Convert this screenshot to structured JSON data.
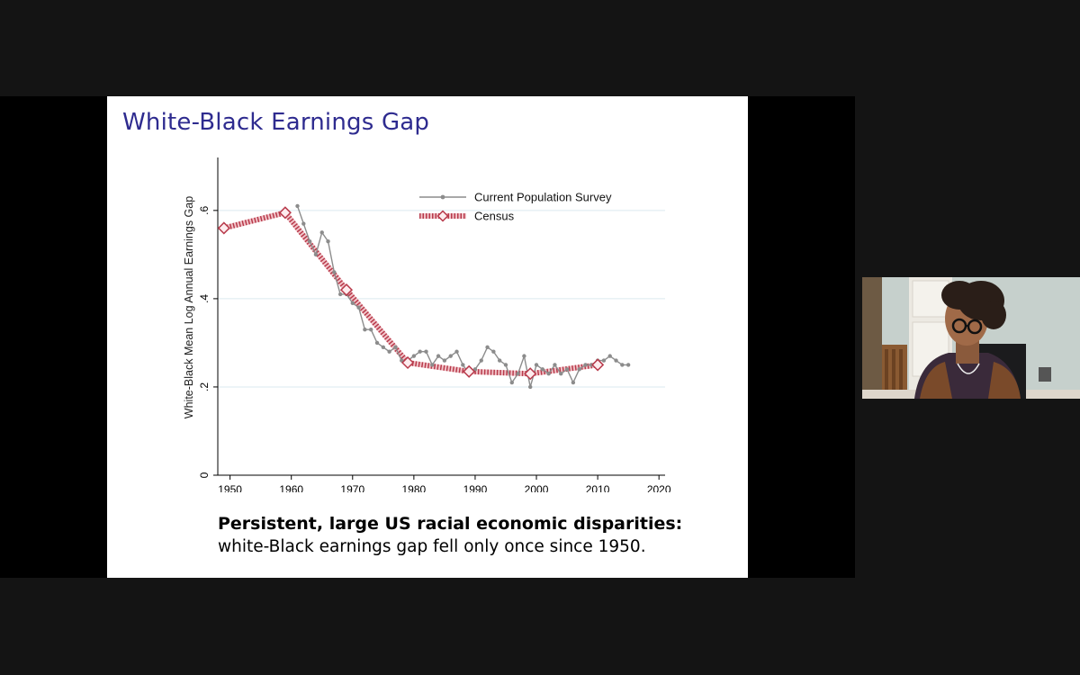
{
  "slide": {
    "title": "White-Black Earnings Gap",
    "caption_bold": "Persistent, large US racial economic disparities:",
    "caption_text": "white-Black earnings gap fell only once since 1950."
  },
  "chart_data": {
    "type": "line",
    "title": "",
    "xlabel": "",
    "ylabel": "White-Black Mean Log Annual Earnings Gap",
    "xlim": [
      1948,
      2021
    ],
    "ylim": [
      0,
      0.72
    ],
    "x_ticks": [
      1950,
      1960,
      1970,
      1980,
      1990,
      2000,
      2010,
      2020
    ],
    "y_ticks": [
      0,
      0.2,
      0.4,
      0.6
    ],
    "y_tick_labels": [
      "0",
      ".2",
      ".4",
      ".6"
    ],
    "grid": "horizontal",
    "legend_position": "top-right",
    "series": [
      {
        "name": "Current Population Survey",
        "color": "#8c8c8c",
        "marker": "dot",
        "x": [
          1961,
          1962,
          1963,
          1964,
          1965,
          1966,
          1967,
          1968,
          1969,
          1970,
          1971,
          1972,
          1973,
          1974,
          1975,
          1976,
          1977,
          1978,
          1979,
          1980,
          1981,
          1982,
          1983,
          1984,
          1985,
          1986,
          1987,
          1988,
          1989,
          1990,
          1991,
          1992,
          1993,
          1994,
          1995,
          1996,
          1997,
          1998,
          1999,
          2000,
          2001,
          2002,
          2003,
          2004,
          2005,
          2006,
          2007,
          2008,
          2009,
          2010,
          2011,
          2012,
          2013,
          2014,
          2015
        ],
        "y": [
          0.61,
          0.57,
          0.53,
          0.5,
          0.55,
          0.53,
          0.46,
          0.41,
          0.41,
          0.39,
          0.38,
          0.33,
          0.33,
          0.3,
          0.29,
          0.28,
          0.29,
          0.26,
          0.26,
          0.27,
          0.28,
          0.28,
          0.25,
          0.27,
          0.26,
          0.27,
          0.28,
          0.25,
          0.23,
          0.24,
          0.26,
          0.29,
          0.28,
          0.26,
          0.25,
          0.21,
          0.23,
          0.27,
          0.2,
          0.25,
          0.24,
          0.23,
          0.25,
          0.23,
          0.24,
          0.21,
          0.24,
          0.25,
          0.25,
          0.26,
          0.26,
          0.27,
          0.26,
          0.25,
          0.25
        ]
      },
      {
        "name": "Census",
        "color": "#b83a4b",
        "marker": "diamond",
        "x": [
          1949,
          1959,
          1969,
          1979,
          1989,
          1999,
          2010
        ],
        "y": [
          0.56,
          0.595,
          0.42,
          0.255,
          0.235,
          0.23,
          0.25
        ]
      }
    ]
  }
}
